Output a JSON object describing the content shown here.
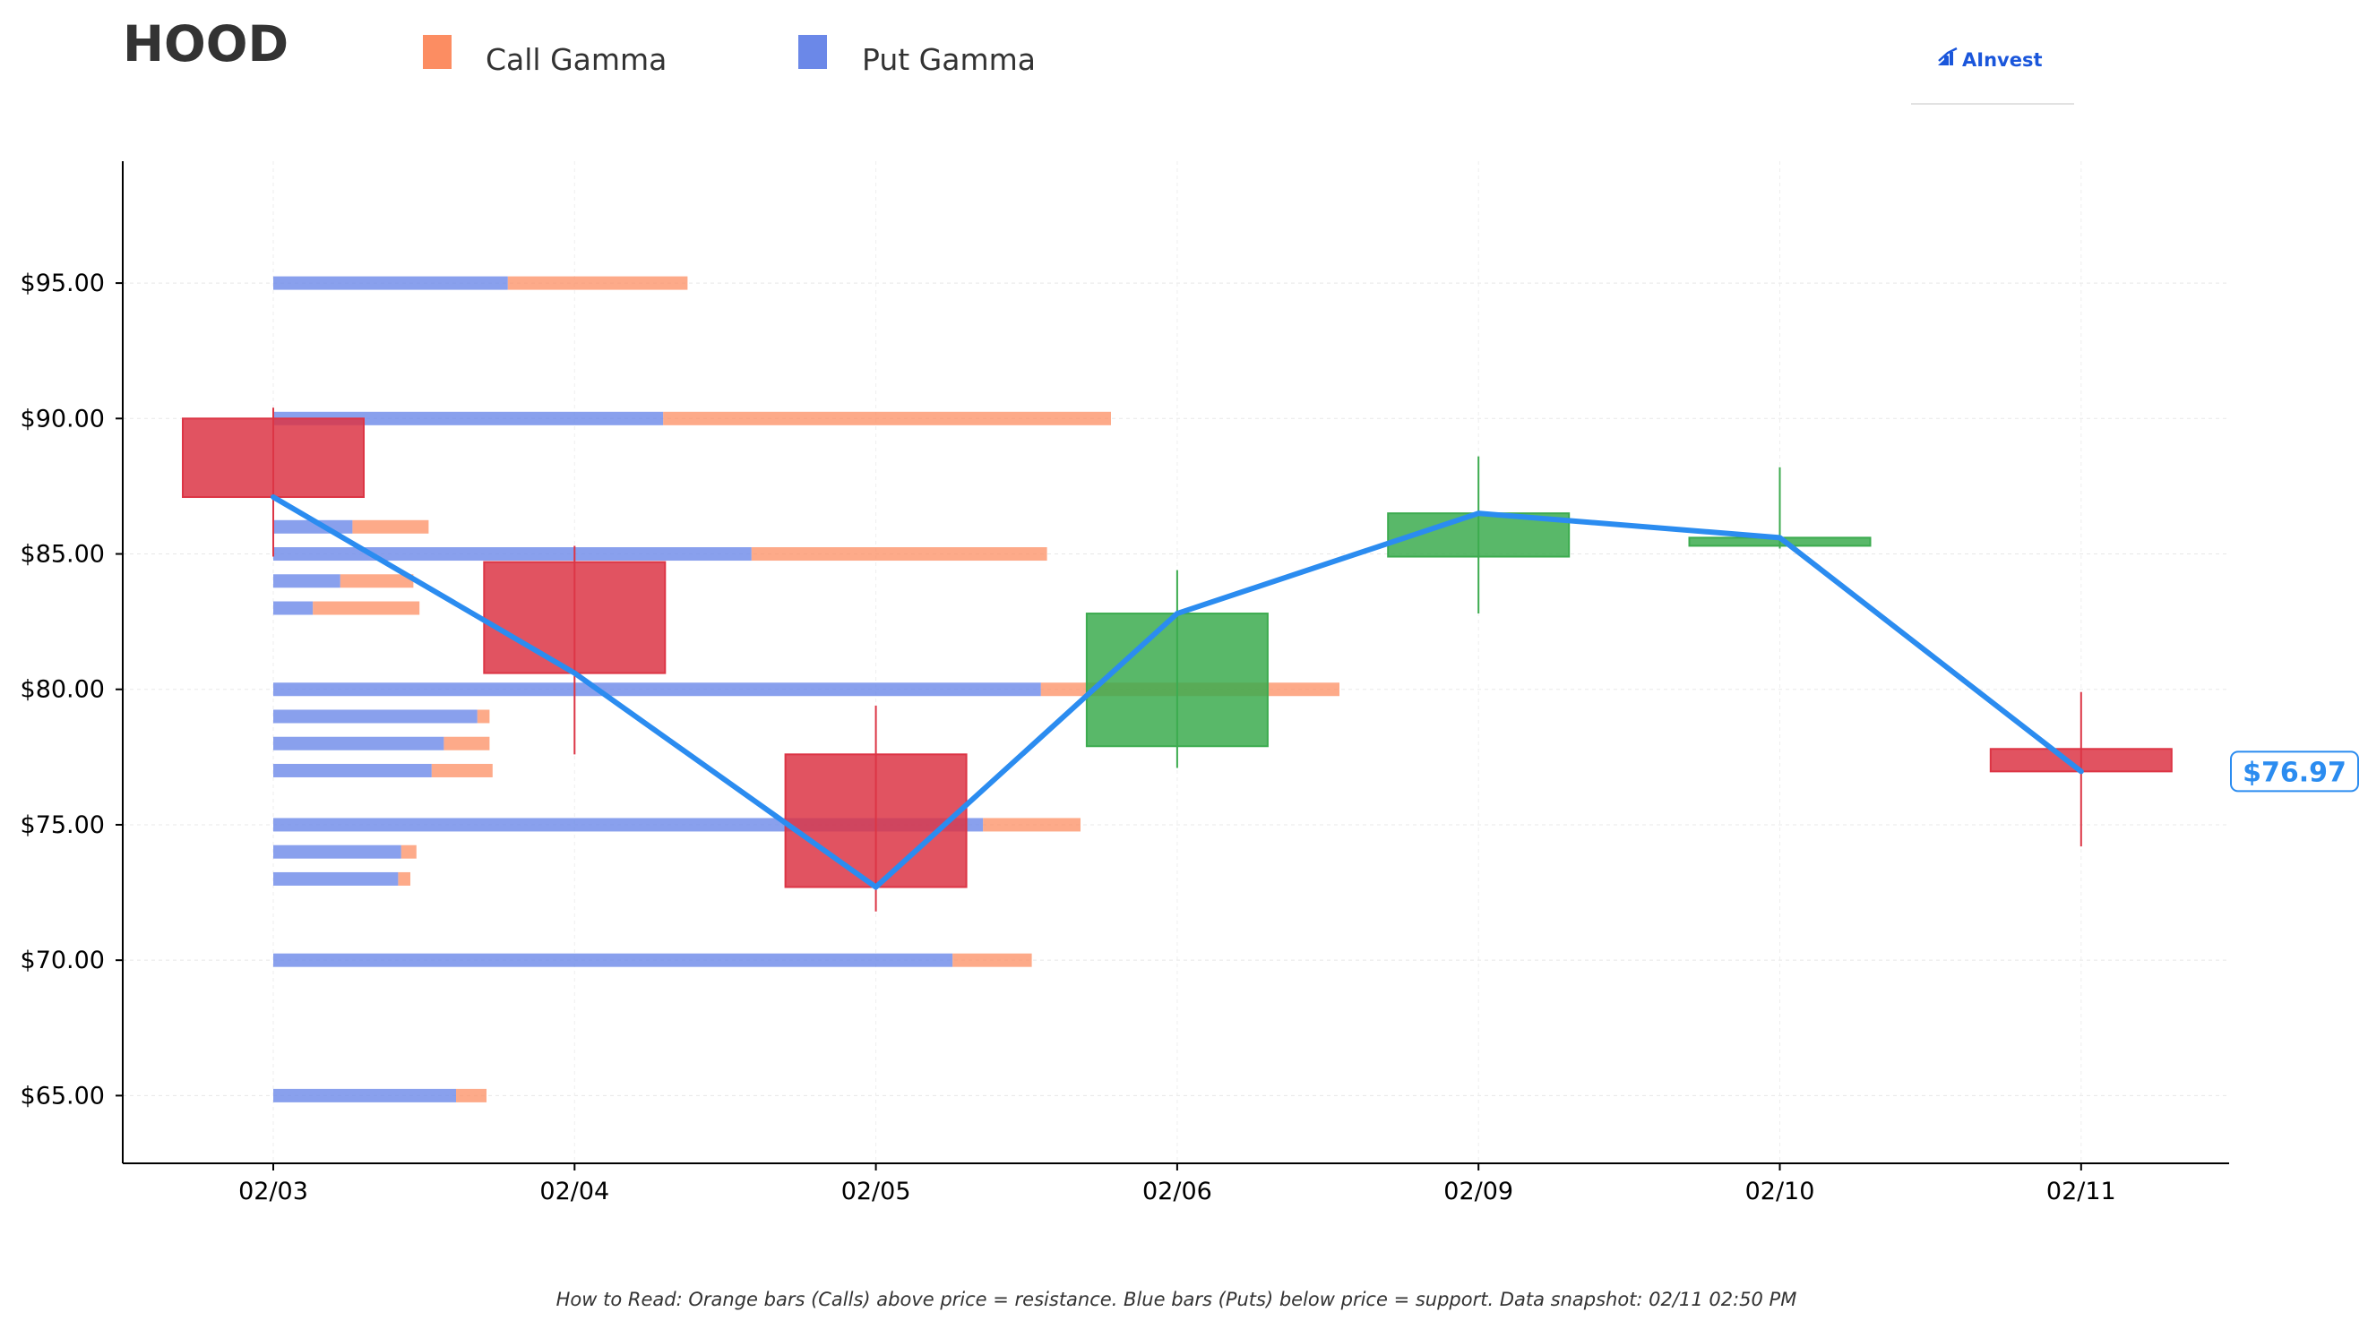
{
  "ticker": "HOOD",
  "legend": {
    "call_label": "Call Gamma",
    "put_label": "Put Gamma"
  },
  "brand": {
    "name": "AInvest"
  },
  "footnote": "How to Read: Orange bars (Calls) above price = resistance. Blue bars (Puts) below price = support. Data snapshot: 02/11 02:50 PM",
  "colors": {
    "call": "#fc8d62",
    "put": "#6b88e8",
    "up": "#3cab4f",
    "down": "#dc3545",
    "line": "#2b8cf0",
    "brand": "#1a56db"
  },
  "chart_data": {
    "type": "candlestick",
    "title": "HOOD",
    "categories": [
      "02/03",
      "02/04",
      "02/05",
      "02/06",
      "02/09",
      "02/10",
      "02/11"
    ],
    "ylim": [
      62.5,
      99.5
    ],
    "yticks": [
      65,
      70,
      75,
      80,
      85,
      90,
      95
    ],
    "ytick_labels": [
      "$65.00",
      "$70.00",
      "$75.00",
      "$80.00",
      "$85.00",
      "$90.00",
      "$95.00"
    ],
    "candles": [
      {
        "date": "02/03",
        "open": 90.0,
        "high": 90.4,
        "low": 84.9,
        "close": 87.1
      },
      {
        "date": "02/04",
        "open": 84.7,
        "high": 85.3,
        "low": 77.6,
        "close": 80.6
      },
      {
        "date": "02/05",
        "open": 77.6,
        "high": 79.4,
        "low": 71.8,
        "close": 72.7
      },
      {
        "date": "02/06",
        "open": 77.9,
        "high": 84.4,
        "low": 77.1,
        "close": 82.8
      },
      {
        "date": "02/09",
        "open": 84.9,
        "high": 88.6,
        "low": 82.8,
        "close": 86.5
      },
      {
        "date": "02/10",
        "open": 85.3,
        "high": 88.2,
        "low": 85.2,
        "close": 85.6
      },
      {
        "date": "02/11",
        "open": 77.8,
        "high": 79.9,
        "low": 74.2,
        "close": 76.97
      }
    ],
    "close_line": [
      87.1,
      80.6,
      72.7,
      82.8,
      86.5,
      85.6,
      76.97
    ],
    "last_price_label": "$76.97",
    "gamma_scale_note": "bar lengths in relative gamma units",
    "gamma_levels": [
      {
        "strike": 95,
        "put": 7.7,
        "call": 5.9
      },
      {
        "strike": 90,
        "put": 12.8,
        "call": 14.7
      },
      {
        "strike": 86,
        "put": 2.6,
        "call": 2.5
      },
      {
        "strike": 85,
        "put": 15.7,
        "call": 9.7
      },
      {
        "strike": 84,
        "put": 2.2,
        "call": 2.4
      },
      {
        "strike": 83,
        "put": 1.3,
        "call": 3.5
      },
      {
        "strike": 80,
        "put": 25.2,
        "call": 9.8
      },
      {
        "strike": 79,
        "put": 6.7,
        "call": 0.4
      },
      {
        "strike": 78,
        "put": 5.6,
        "call": 1.5
      },
      {
        "strike": 77,
        "put": 5.2,
        "call": 2.0
      },
      {
        "strike": 75,
        "put": 23.3,
        "call": 3.2
      },
      {
        "strike": 74,
        "put": 4.2,
        "call": 0.5
      },
      {
        "strike": 73,
        "put": 4.1,
        "call": 0.4
      },
      {
        "strike": 70,
        "put": 22.3,
        "call": 2.6
      },
      {
        "strike": 65,
        "put": 6.0,
        "call": 1.0
      }
    ]
  }
}
